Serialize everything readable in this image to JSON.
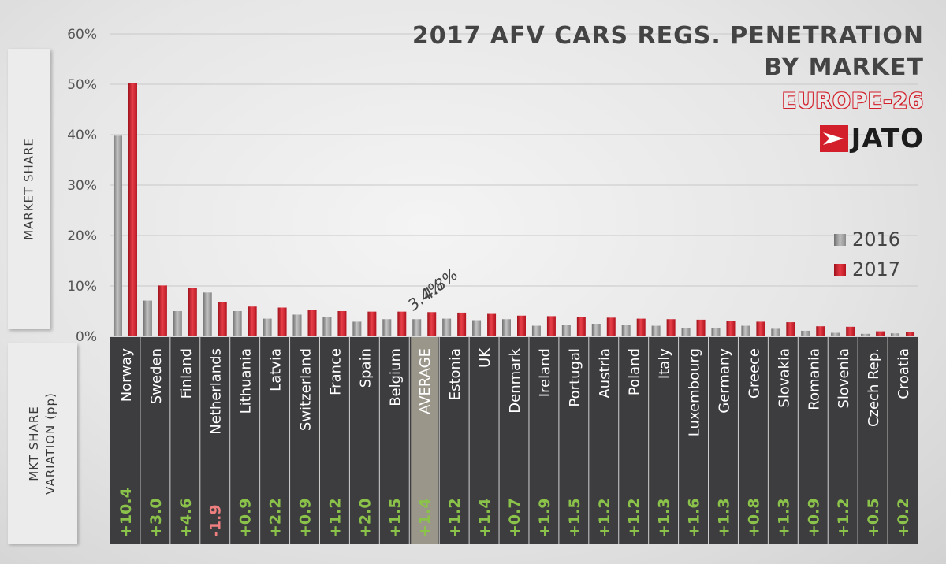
{
  "title_line1": "2017 AFV CARS REGS. PENETRATION",
  "title_line2": "BY MARKET",
  "subtitle": "EUROPE-26",
  "logo_text": "JATO",
  "left_label_top": "MARKET SHARE",
  "left_label_bottom_line1": "MKT SHARE",
  "left_label_bottom_line2": "VARIATION (pp)",
  "colors": {
    "series_2016": "#9a9a9a",
    "series_2017": "#d21f2b",
    "table_bg": "#3d3d40",
    "average_bg": "#9b968a",
    "positive": "#8bc34a",
    "negative": "#f08080"
  },
  "chart_data": {
    "type": "bar",
    "title": "2017 AFV CARS REGS. PENETRATION BY MARKET",
    "subtitle": "EUROPE-26",
    "ylabel": "MARKET SHARE",
    "ylim": [
      0,
      60
    ],
    "yticks": [
      "0%",
      "10%",
      "20%",
      "30%",
      "40%",
      "50%",
      "60%"
    ],
    "grid": true,
    "legend_position": "right",
    "categories": [
      "Norway",
      "Sweden",
      "Finland",
      "Netherlands",
      "Lithuania",
      "Latvia",
      "Switzerland",
      "France",
      "Spain",
      "Belgium",
      "AVERAGE",
      "Estonia",
      "UK",
      "Denmark",
      "Ireland",
      "Portugal",
      "Austria",
      "Poland",
      "Italy",
      "Luxembourg",
      "Germany",
      "Greece",
      "Slovakia",
      "Romania",
      "Slovenia",
      "Czech Rep.",
      "Croatia"
    ],
    "series": [
      {
        "name": "2016",
        "values": [
          39.8,
          7.1,
          5.0,
          8.7,
          5.0,
          3.5,
          4.3,
          3.8,
          2.9,
          3.4,
          3.4,
          3.5,
          3.2,
          3.4,
          2.1,
          2.3,
          2.5,
          2.3,
          2.1,
          1.7,
          1.7,
          2.1,
          1.5,
          1.1,
          0.7,
          0.5,
          0.6
        ]
      },
      {
        "name": "2017",
        "values": [
          50.2,
          10.1,
          9.6,
          6.8,
          5.9,
          5.7,
          5.2,
          5.0,
          4.9,
          4.9,
          4.8,
          4.7,
          4.6,
          4.1,
          4.0,
          3.8,
          3.7,
          3.5,
          3.4,
          3.3,
          3.0,
          2.9,
          2.8,
          2.0,
          1.9,
          1.0,
          0.8
        ]
      }
    ],
    "average_labels": [
      "3.4%",
      "4.8%"
    ],
    "variation_label": "MKT SHARE VARIATION (pp)",
    "variation": [
      "+10.4",
      "+3.0",
      "+4.6",
      "-1.9",
      "+0.9",
      "+2.2",
      "+0.9",
      "+1.2",
      "+2.0",
      "+1.5",
      "+1.4",
      "+1.2",
      "+1.4",
      "+0.7",
      "+1.9",
      "+1.5",
      "+1.2",
      "+1.2",
      "+1.3",
      "+1.6",
      "+1.3",
      "+0.8",
      "+1.3",
      "+0.9",
      "+1.2",
      "+0.5",
      "+0.2"
    ]
  }
}
